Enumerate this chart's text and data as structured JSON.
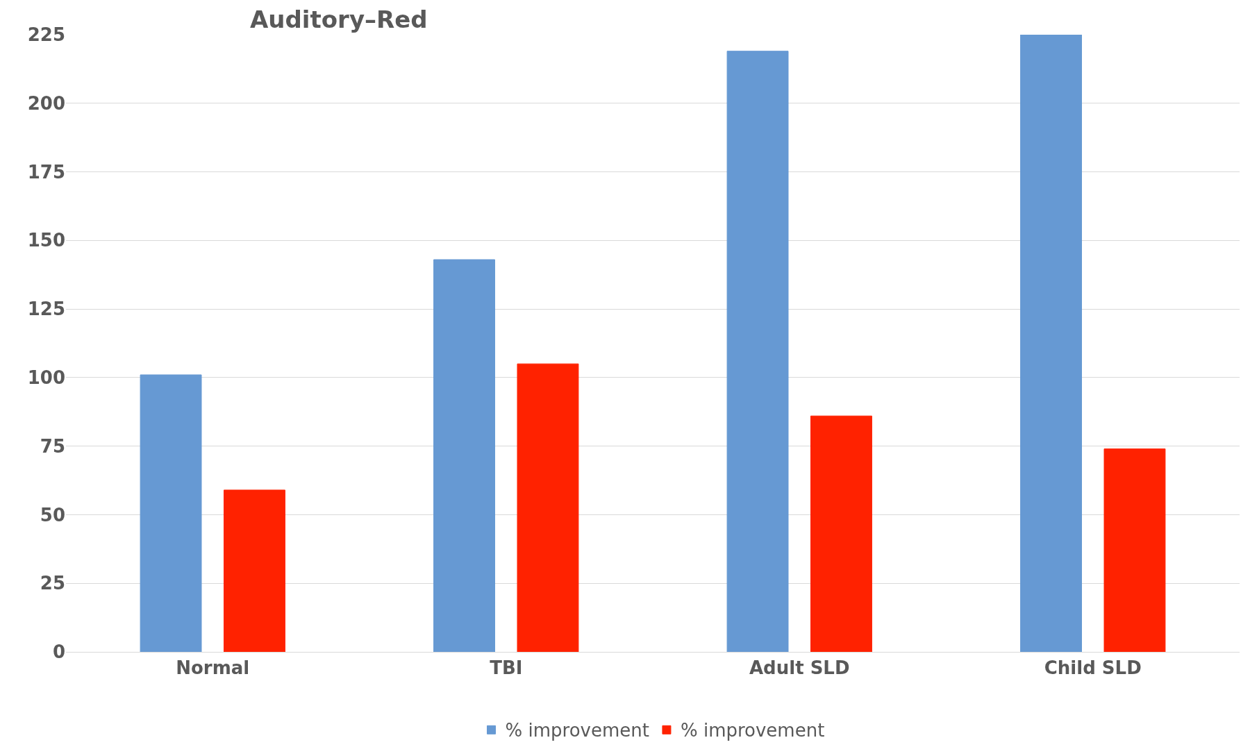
{
  "chart_data": {
    "type": "bar",
    "title": "Auditory–Red",
    "categories": [
      "Normal",
      "TBI",
      "Adult SLD",
      "Child SLD"
    ],
    "series": [
      {
        "name": "% improvement",
        "color": "#6699d3",
        "values": [
          101,
          143,
          219,
          225
        ]
      },
      {
        "name": "% improvement",
        "color": "#ff2200",
        "values": [
          59,
          105,
          86,
          74
        ]
      }
    ],
    "ylim": [
      0,
      225
    ],
    "yticks": [
      0,
      25,
      50,
      75,
      100,
      125,
      150,
      175,
      200,
      225
    ],
    "grid": "y",
    "legend": "bottom"
  }
}
